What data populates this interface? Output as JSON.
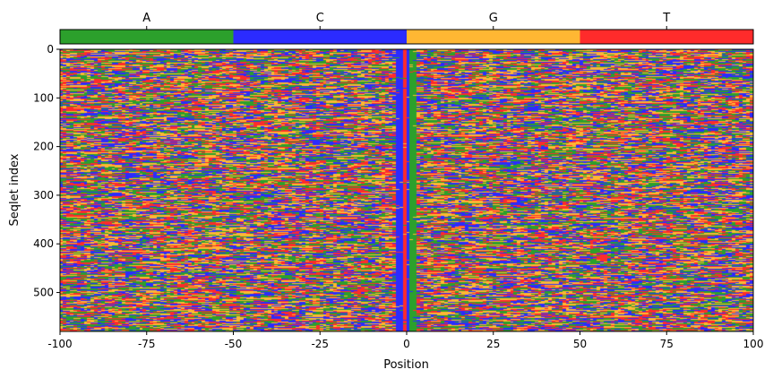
{
  "chart_data": [
    {
      "type": "bar",
      "role": "colorbar-legend",
      "categories": [
        "A",
        "C",
        "G",
        "T"
      ],
      "colors": [
        "#2ca02c",
        "#2b2bff",
        "#ffb733",
        "#ff2b2b"
      ],
      "orientation": "horizontal",
      "tick_position": "top"
    },
    {
      "type": "heatmap",
      "xlabel": "Position",
      "ylabel": "Seqlet index",
      "xlim": [
        -100,
        100
      ],
      "ylim": [
        0,
        580
      ],
      "y_inverted": true,
      "x_ticks": [
        -100,
        -75,
        -50,
        -25,
        0,
        25,
        50,
        75,
        100
      ],
      "x_tick_labels": [
        "-100",
        "-75",
        "-50",
        "-25",
        "0",
        "25",
        "50",
        "75",
        "100"
      ],
      "y_ticks": [
        0,
        100,
        200,
        300,
        400,
        500
      ],
      "y_tick_labels": [
        "0",
        "100",
        "200",
        "300",
        "400",
        "500"
      ],
      "n_rows": 580,
      "n_positions": 200,
      "categories": [
        "A",
        "C",
        "G",
        "T"
      ],
      "colors": [
        "#2ca02c",
        "#2b2bff",
        "#ffb733",
        "#ff2b2b"
      ],
      "conserved_columns": [
        {
          "position": -3,
          "base": "C"
        },
        {
          "position": -2,
          "base": "C"
        },
        {
          "position": -1,
          "base": "T"
        },
        {
          "position": 0,
          "base": "C"
        },
        {
          "position": 1,
          "base": "A"
        },
        {
          "position": 2,
          "base": "A"
        }
      ],
      "grid": false
    }
  ]
}
